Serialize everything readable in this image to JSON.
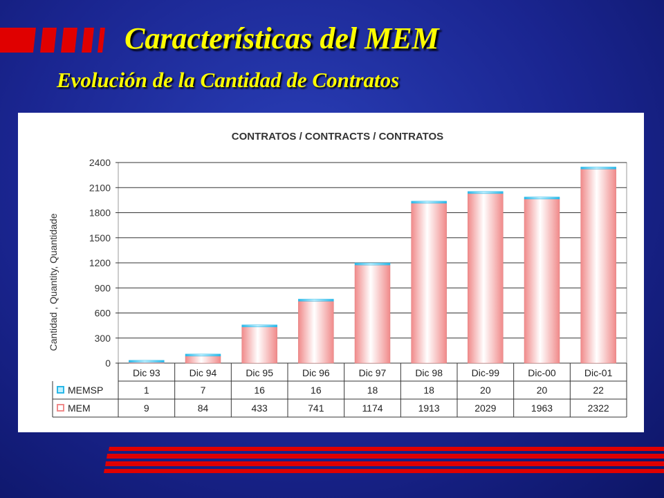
{
  "slide": {
    "title": "Características del MEM",
    "subtitle": "Evolución de la Cantidad de Contratos"
  },
  "colors": {
    "background": "#1a2590",
    "title": "#ffff00",
    "stripes": "#e00000",
    "memsp": "#3cc8ee",
    "mem": "#f5a0a0"
  },
  "chart_data": {
    "type": "bar",
    "stacked": true,
    "title": "CONTRATOS / CONTRACTS / CONTRATOS",
    "xlabel": "",
    "ylabel": "Cantidad , Quantity,  Quantidade",
    "ylim": [
      0,
      2400
    ],
    "yticks": [
      0,
      300,
      600,
      900,
      1200,
      1500,
      1800,
      2100,
      2400
    ],
    "grid": true,
    "categories": [
      "Dic 93",
      "Dic 94",
      "Dic 95",
      "Dic 96",
      "Dic 97",
      "Dic 98",
      "Dic-99",
      "Dic-00",
      "Dic-01"
    ],
    "series": [
      {
        "name": "MEMSP",
        "color": "#3cc8ee",
        "values": [
          1,
          7,
          16,
          16,
          18,
          18,
          20,
          20,
          22
        ]
      },
      {
        "name": "MEM",
        "color": "#f5a0a0",
        "values": [
          9,
          84,
          433,
          741,
          1174,
          1913,
          2029,
          1963,
          2322
        ]
      }
    ]
  }
}
